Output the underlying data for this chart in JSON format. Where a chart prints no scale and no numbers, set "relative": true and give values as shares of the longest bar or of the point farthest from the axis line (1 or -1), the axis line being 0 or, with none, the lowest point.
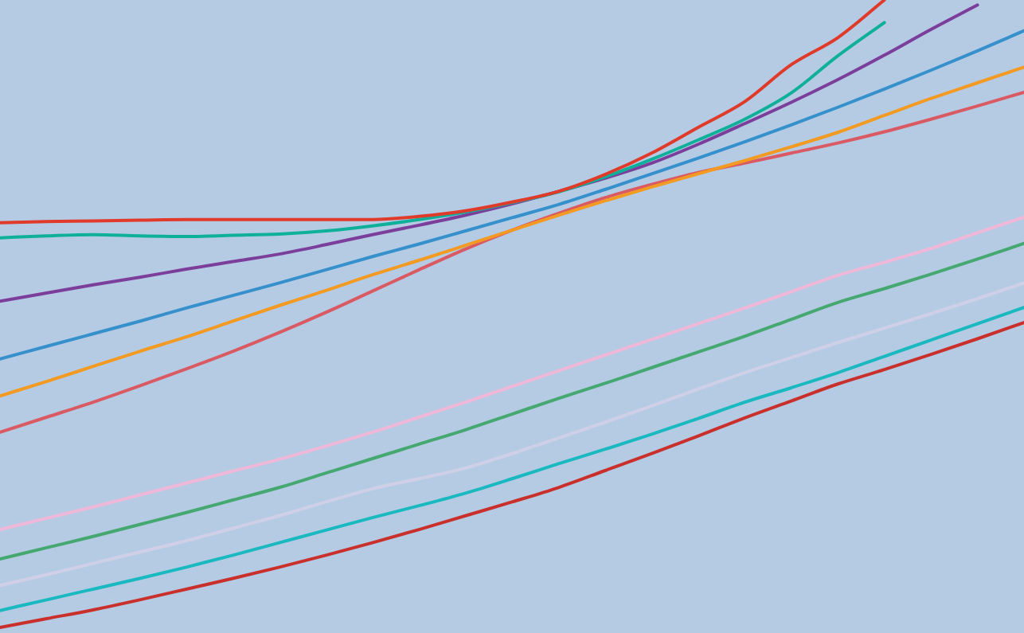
{
  "chart_data": {
    "type": "line",
    "relative": true,
    "categories": [
      null,
      null,
      null,
      null,
      null,
      null,
      null,
      null,
      null,
      null,
      null,
      null,
      null,
      null,
      null,
      null,
      null,
      null,
      null,
      null,
      null,
      null,
      null
    ],
    "series": [
      {
        "color": "#e03a2a",
        "values": [
          0.645,
          0.647,
          0.648,
          0.649,
          0.65,
          0.65,
          0.65,
          0.65,
          0.65,
          0.655,
          0.664,
          0.678,
          0.695,
          0.722,
          0.756,
          0.797,
          0.838,
          0.897,
          0.94,
          1,
          null,
          null,
          null
        ]
      },
      {
        "color": "#0fb09a",
        "values": [
          0.621,
          0.624,
          0.626,
          0.624,
          0.623,
          0.625,
          0.627,
          0.632,
          0.64,
          0.65,
          0.662,
          0.677,
          0.694,
          0.718,
          0.746,
          0.777,
          0.81,
          0.852,
          0.911,
          0.964,
          null,
          null,
          null
        ]
      },
      {
        "color": "#7b3f9b",
        "values": [
          0.52,
          0.533,
          0.546,
          0.558,
          0.571,
          0.583,
          0.595,
          0.61,
          0.626,
          0.641,
          0.657,
          0.675,
          0.695,
          0.716,
          0.74,
          0.77,
          0.803,
          0.837,
          0.873,
          0.912,
          0.953,
          0.992,
          null
        ]
      },
      {
        "color": "#3590cc",
        "values": [
          0.428,
          0.448,
          0.468,
          0.488,
          0.509,
          0.529,
          0.549,
          0.57,
          0.591,
          0.611,
          0.632,
          0.653,
          0.674,
          0.698,
          0.723,
          0.748,
          0.774,
          0.801,
          0.829,
          0.858,
          0.888,
          0.919,
          0.951
        ]
      },
      {
        "color": "#f39a22",
        "values": [
          0.369,
          0.392,
          0.416,
          0.44,
          0.463,
          0.488,
          0.513,
          0.537,
          0.562,
          0.585,
          0.609,
          0.633,
          0.657,
          0.68,
          0.702,
          0.723,
          0.744,
          0.766,
          0.789,
          0.816,
          0.843,
          0.868,
          0.893
        ]
      },
      {
        "color": "#d95a63",
        "values": [
          0.311,
          0.335,
          0.359,
          0.385,
          0.412,
          0.44,
          0.47,
          0.502,
          0.536,
          0.57,
          0.603,
          0.633,
          0.66,
          0.685,
          0.706,
          0.725,
          0.74,
          0.756,
          0.772,
          0.79,
          0.81,
          0.831,
          0.853
        ]
      },
      {
        "color": "#f0b8d8",
        "values": [
          0.156,
          0.174,
          0.192,
          0.211,
          0.23,
          0.249,
          0.268,
          0.289,
          0.311,
          0.335,
          0.359,
          0.384,
          0.409,
          0.434,
          0.459,
          0.484,
          0.509,
          0.535,
          0.561,
          0.582,
          0.604,
          0.629,
          0.654
        ]
      },
      {
        "color": "#45a870",
        "values": [
          0.109,
          0.127,
          0.145,
          0.164,
          0.183,
          0.203,
          0.223,
          0.246,
          0.269,
          0.292,
          0.315,
          0.34,
          0.365,
          0.389,
          0.414,
          0.439,
          0.464,
          0.491,
          0.518,
          0.54,
          0.563,
          0.587,
          0.612
        ]
      },
      {
        "color": "#cfd0e8",
        "values": [
          0.067,
          0.084,
          0.102,
          0.12,
          0.138,
          0.158,
          0.178,
          0.2,
          0.221,
          0.237,
          0.254,
          0.277,
          0.302,
          0.327,
          0.353,
          0.38,
          0.406,
          0.43,
          0.454,
          0.477,
          0.5,
          0.524,
          0.549
        ]
      },
      {
        "color": "#1ab9c0",
        "values": [
          0.027,
          0.044,
          0.061,
          0.078,
          0.096,
          0.115,
          0.135,
          0.155,
          0.175,
          0.194,
          0.214,
          0.237,
          0.261,
          0.284,
          0.308,
          0.333,
          0.359,
          0.382,
          0.406,
          0.432,
          0.458,
          0.484,
          0.51
        ]
      },
      {
        "color": "#c9302c",
        "values": [
          0,
          0.014,
          0.028,
          0.044,
          0.061,
          0.078,
          0.096,
          0.115,
          0.135,
          0.156,
          0.178,
          0.2,
          0.223,
          0.25,
          0.277,
          0.305,
          0.334,
          0.361,
          0.388,
          0.411,
          0.435,
          0.46,
          0.486
        ]
      }
    ]
  }
}
